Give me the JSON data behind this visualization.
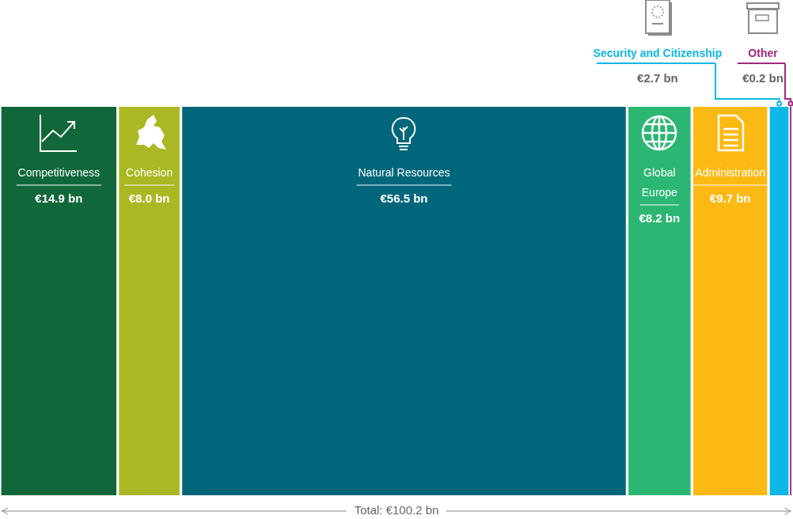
{
  "chart_data": {
    "type": "other",
    "categories": [
      null
    ],
    "series": [
      {
        "name": "Competitiveness",
        "color": "#10683a",
        "values": [
          14.9
        ],
        "value_labels": [
          "€14.9 bn"
        ]
      },
      {
        "name": "Cohesion",
        "color": "#a9b823",
        "values": [
          8.0
        ],
        "value_labels": [
          "€8.0 bn"
        ]
      },
      {
        "name": "Natural Resources",
        "color": "#00667b",
        "values": [
          56.5
        ],
        "value_labels": [
          "€56.5 bn"
        ]
      },
      {
        "name": "Global Europe",
        "color": "#2bb673",
        "values": [
          8.2
        ],
        "value_labels": [
          "€8.2 bn"
        ]
      },
      {
        "name": "Administration",
        "color": "#fdb913",
        "values": [
          9.7
        ],
        "value_labels": [
          "€9.7 bn"
        ]
      },
      {
        "name": "Security and Citizenship",
        "color": "#0db7e6",
        "values": [
          2.7
        ],
        "value_labels": [
          "€2.7 bn"
        ]
      },
      {
        "name": "Other",
        "color": "#a0287f",
        "values": [
          0.2
        ],
        "value_labels": [
          "€0.2 bn"
        ]
      }
    ],
    "annotations": [
      "Total: €100.2 bn"
    ]
  }
}
